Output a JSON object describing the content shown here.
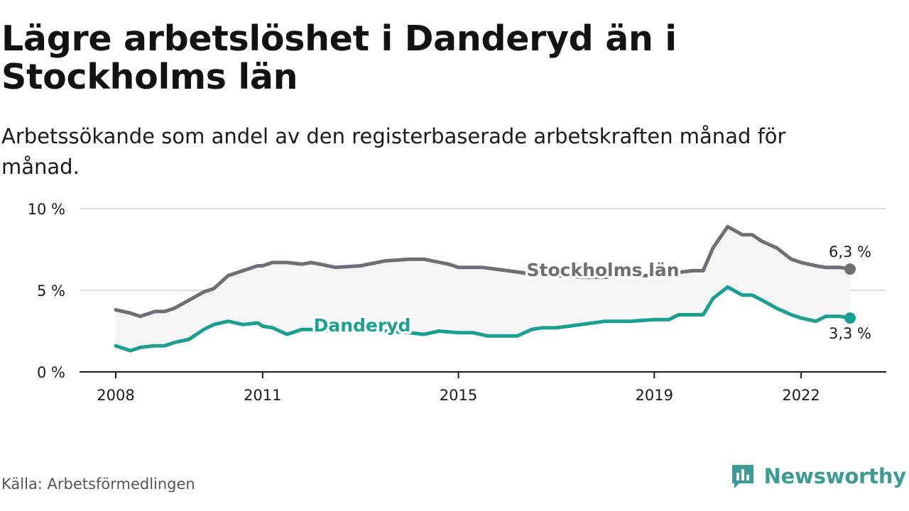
{
  "title": "Lägre arbetslöshet i Danderyd än i Stockholms län",
  "subtitle": "Arbetssökande som andel av den registerbaserade arbetskraften månad för månad.",
  "source": "Källa: Arbetsförmedlingen",
  "brand": {
    "name": "Newsworthy",
    "icon": "newsworthy-logo-icon",
    "color": "#3a9c95"
  },
  "chart_data": {
    "type": "line",
    "ylim": [
      0,
      10
    ],
    "xlim": [
      2008.0,
      2023.0
    ],
    "yticks": [
      {
        "value": 0,
        "label": "0 %"
      },
      {
        "value": 5,
        "label": "5 %"
      },
      {
        "value": 10,
        "label": "10 %"
      }
    ],
    "xticks": [
      {
        "value": 2008,
        "label": "2008"
      },
      {
        "value": 2011,
        "label": "2011"
      },
      {
        "value": 2015,
        "label": "2015"
      },
      {
        "value": 2019,
        "label": "2019"
      },
      {
        "value": 2022,
        "label": "2022"
      }
    ],
    "grid": true,
    "fill_between": true,
    "series": [
      {
        "name": "Stockholms län",
        "color": "#6f6e75",
        "end_label": "6,3 %",
        "x": [
          2008.0,
          2008.3,
          2008.5,
          2008.8,
          2009.0,
          2009.2,
          2009.5,
          2009.8,
          2010.0,
          2010.3,
          2010.6,
          2010.9,
          2011.0,
          2011.2,
          2011.5,
          2011.8,
          2012.0,
          2012.5,
          2013.0,
          2013.5,
          2014.0,
          2014.3,
          2014.8,
          2015.0,
          2015.5,
          2016.0,
          2016.5,
          2017.0,
          2017.5,
          2018.0,
          2018.5,
          2019.0,
          2019.5,
          2019.8,
          2020.0,
          2020.2,
          2020.5,
          2020.8,
          2021.0,
          2021.2,
          2021.5,
          2021.8,
          2022.0,
          2022.3,
          2022.5,
          2022.8,
          2023.0
        ],
        "y": [
          3.8,
          3.6,
          3.4,
          3.7,
          3.7,
          3.9,
          4.4,
          4.9,
          5.1,
          5.9,
          6.2,
          6.5,
          6.5,
          6.7,
          6.7,
          6.6,
          6.7,
          6.4,
          6.5,
          6.8,
          6.9,
          6.9,
          6.6,
          6.4,
          6.4,
          6.2,
          6.0,
          5.9,
          5.8,
          5.8,
          5.9,
          5.9,
          6.1,
          6.2,
          6.2,
          7.6,
          8.9,
          8.4,
          8.4,
          8.0,
          7.6,
          6.9,
          6.7,
          6.5,
          6.4,
          6.4,
          6.3
        ]
      },
      {
        "name": "Danderyd",
        "color": "#1aa092",
        "end_label": "3,3 %",
        "x": [
          2008.0,
          2008.3,
          2008.5,
          2008.8,
          2009.0,
          2009.2,
          2009.5,
          2009.8,
          2010.0,
          2010.3,
          2010.6,
          2010.9,
          2011.0,
          2011.2,
          2011.5,
          2011.8,
          2012.0,
          2012.5,
          2013.0,
          2013.5,
          2014.0,
          2014.3,
          2014.6,
          2015.0,
          2015.3,
          2015.6,
          2016.0,
          2016.2,
          2016.5,
          2016.7,
          2017.0,
          2017.5,
          2018.0,
          2018.5,
          2019.0,
          2019.3,
          2019.5,
          2019.8,
          2020.0,
          2020.2,
          2020.5,
          2020.8,
          2021.0,
          2021.2,
          2021.5,
          2021.8,
          2022.0,
          2022.3,
          2022.5,
          2022.8,
          2023.0
        ],
        "y": [
          1.6,
          1.3,
          1.5,
          1.6,
          1.6,
          1.8,
          2.0,
          2.6,
          2.9,
          3.1,
          2.9,
          3.0,
          2.8,
          2.7,
          2.3,
          2.6,
          2.6,
          2.5,
          2.5,
          2.5,
          2.4,
          2.3,
          2.5,
          2.4,
          2.4,
          2.2,
          2.2,
          2.2,
          2.6,
          2.7,
          2.7,
          2.9,
          3.1,
          3.1,
          3.2,
          3.2,
          3.5,
          3.5,
          3.5,
          4.5,
          5.2,
          4.7,
          4.7,
          4.4,
          3.9,
          3.5,
          3.3,
          3.1,
          3.4,
          3.4,
          3.3
        ]
      }
    ]
  }
}
